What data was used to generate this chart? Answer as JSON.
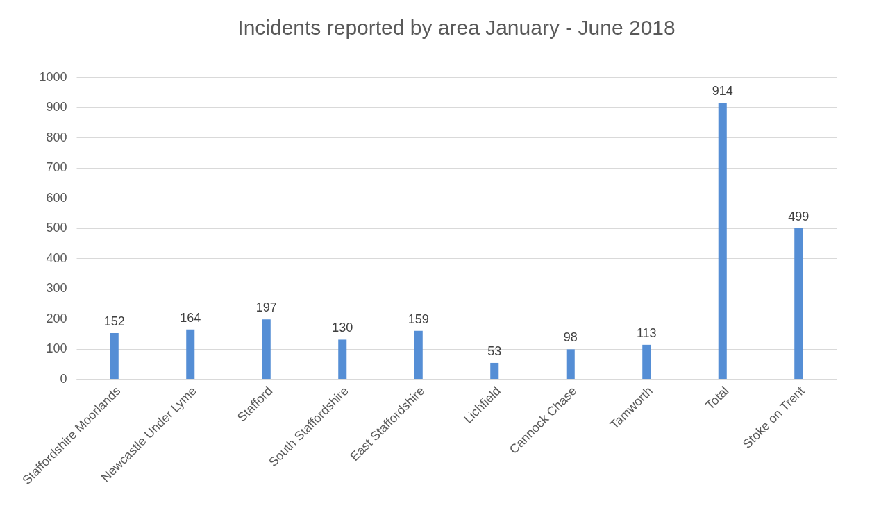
{
  "chart_data": {
    "type": "bar",
    "title": "Incidents reported by area January - June 2018",
    "categories": [
      "Staffordshire Moorlands",
      "Newcastle Under Lyme",
      "Stafford",
      "South Staffordshire",
      "East Staffordshire",
      "Lichfield",
      "Cannock Chase",
      "Tamworth",
      "Total",
      "Stoke on Trent"
    ],
    "values": [
      152,
      164,
      197,
      130,
      159,
      53,
      98,
      113,
      914,
      499
    ],
    "color": "#558ed5",
    "ylim": [
      0,
      1000
    ],
    "yticks": [
      0,
      100,
      200,
      300,
      400,
      500,
      600,
      700,
      800,
      900,
      1000
    ],
    "grid": "y",
    "data_labels": true
  }
}
